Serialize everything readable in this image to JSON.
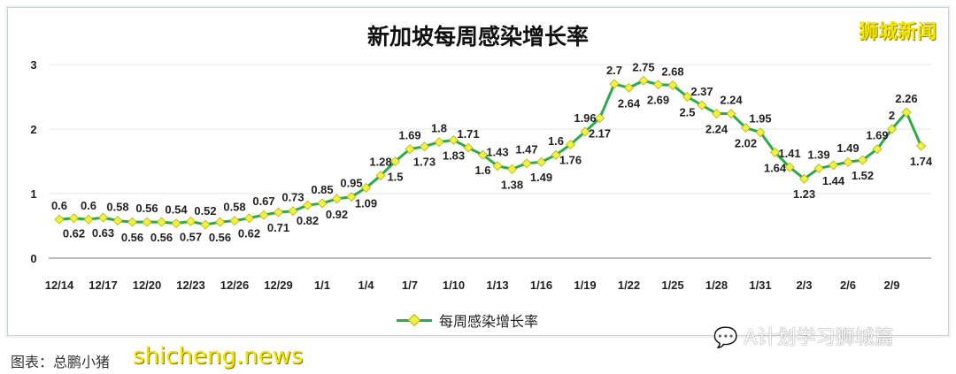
{
  "chart_data": {
    "type": "line",
    "title": "新加坡每周感染增长率",
    "x": [
      "12/14",
      "12/15",
      "12/16",
      "12/17",
      "12/18",
      "12/19",
      "12/20",
      "12/21",
      "12/22",
      "12/23",
      "12/24",
      "12/25",
      "12/26",
      "12/27",
      "12/28",
      "12/29",
      "12/30",
      "12/31",
      "1/1",
      "1/2",
      "1/3",
      "1/4",
      "1/5",
      "1/6",
      "1/7",
      "1/8",
      "1/9",
      "1/10",
      "1/11",
      "1/12",
      "1/13",
      "1/14",
      "1/15",
      "1/16",
      "1/17",
      "1/18",
      "1/19",
      "1/20",
      "1/21",
      "1/22",
      "1/23",
      "1/24",
      "1/25",
      "1/26",
      "1/27",
      "1/28",
      "1/29",
      "1/30",
      "1/31",
      "2/1",
      "2/2",
      "2/3",
      "2/4",
      "2/5",
      "2/6",
      "2/7",
      "2/8",
      "2/9",
      "2/10",
      "2/11"
    ],
    "x_tick_labels": [
      "12/14",
      "12/17",
      "12/20",
      "12/23",
      "12/26",
      "12/29",
      "1/1",
      "1/4",
      "1/7",
      "1/10",
      "1/13",
      "1/16",
      "1/19",
      "1/22",
      "1/25",
      "1/28",
      "1/31",
      "2/3",
      "2/6",
      "2/9"
    ],
    "series": [
      {
        "name": "每周感染增长率",
        "color": "#2eaa4a",
        "marker_color": "#f0f04a",
        "values": [
          0.6,
          0.62,
          0.6,
          0.63,
          0.58,
          0.56,
          0.56,
          0.56,
          0.54,
          0.57,
          0.52,
          0.56,
          0.58,
          0.62,
          0.67,
          0.71,
          0.73,
          0.82,
          0.85,
          0.92,
          0.95,
          1.09,
          1.28,
          1.5,
          1.69,
          1.73,
          1.8,
          1.83,
          1.71,
          1.6,
          1.43,
          1.38,
          1.47,
          1.49,
          1.6,
          1.76,
          1.96,
          2.17,
          2.7,
          2.64,
          2.75,
          2.69,
          2.68,
          2.5,
          2.37,
          2.24,
          2.24,
          2.02,
          1.95,
          1.64,
          1.41,
          1.23,
          1.39,
          1.44,
          1.49,
          1.52,
          1.69,
          2,
          2.26,
          1.74
        ]
      }
    ],
    "y_ticks": [
      0,
      1,
      2,
      3
    ],
    "ylim": [
      0,
      3
    ],
    "grid": true,
    "legend": "bottom"
  },
  "watermarks": {
    "top_right": "狮城新闻",
    "bottom_left": "shicheng.news",
    "wechat": "A计划学习狮城篇"
  },
  "credit": "图表：总鹏小猪"
}
